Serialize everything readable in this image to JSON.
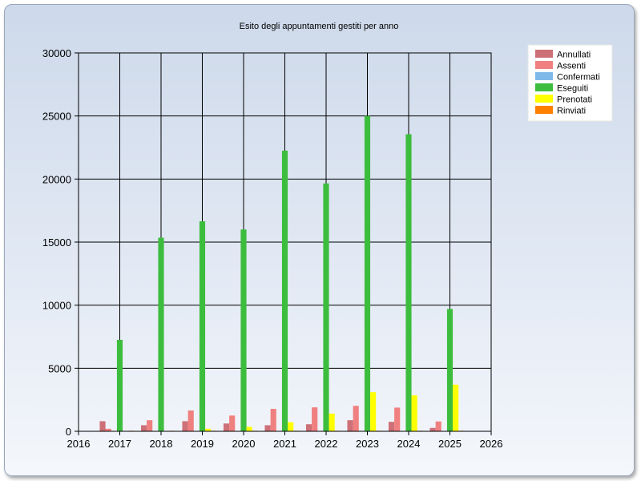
{
  "chart_data": {
    "type": "bar",
    "title": "Esito degli appuntamenti gestiti per anno",
    "xlabel": "",
    "ylabel": "",
    "x_ticks": [
      "2016",
      "2017",
      "2018",
      "2019",
      "2020",
      "2021",
      "2022",
      "2023",
      "2024",
      "2025",
      "2026"
    ],
    "y_ticks": [
      "0",
      "5000",
      "10000",
      "15000",
      "20000",
      "25000",
      "30000"
    ],
    "xlim": [
      2016,
      2026
    ],
    "ylim": [
      0,
      30000
    ],
    "grid": true,
    "legend_position": "top-right",
    "categories": [
      2017,
      2018,
      2019,
      2020,
      2021,
      2022,
      2023,
      2024,
      2025
    ],
    "series": [
      {
        "name": "Annullati",
        "color": "#cd7078",
        "values": [
          800,
          480,
          800,
          620,
          480,
          560,
          880,
          750,
          270
        ]
      },
      {
        "name": "Assenti",
        "color": "#f08080",
        "values": [
          200,
          880,
          1650,
          1250,
          1780,
          1900,
          2020,
          1880,
          780
        ]
      },
      {
        "name": "Confermati",
        "color": "#7fb9ea",
        "values": [
          0,
          0,
          0,
          0,
          0,
          0,
          0,
          0,
          0
        ]
      },
      {
        "name": "Eseguiti",
        "color": "#3dbd3d",
        "values": [
          7250,
          15350,
          16650,
          16000,
          22250,
          19650,
          25000,
          23550,
          9700
        ]
      },
      {
        "name": "Prenotati",
        "color": "#ffff00",
        "values": [
          0,
          30,
          200,
          350,
          720,
          1400,
          3100,
          2850,
          3700
        ]
      },
      {
        "name": "Rinviati",
        "color": "#ff8000",
        "values": [
          40,
          40,
          40,
          40,
          40,
          40,
          40,
          40,
          40
        ]
      }
    ]
  }
}
